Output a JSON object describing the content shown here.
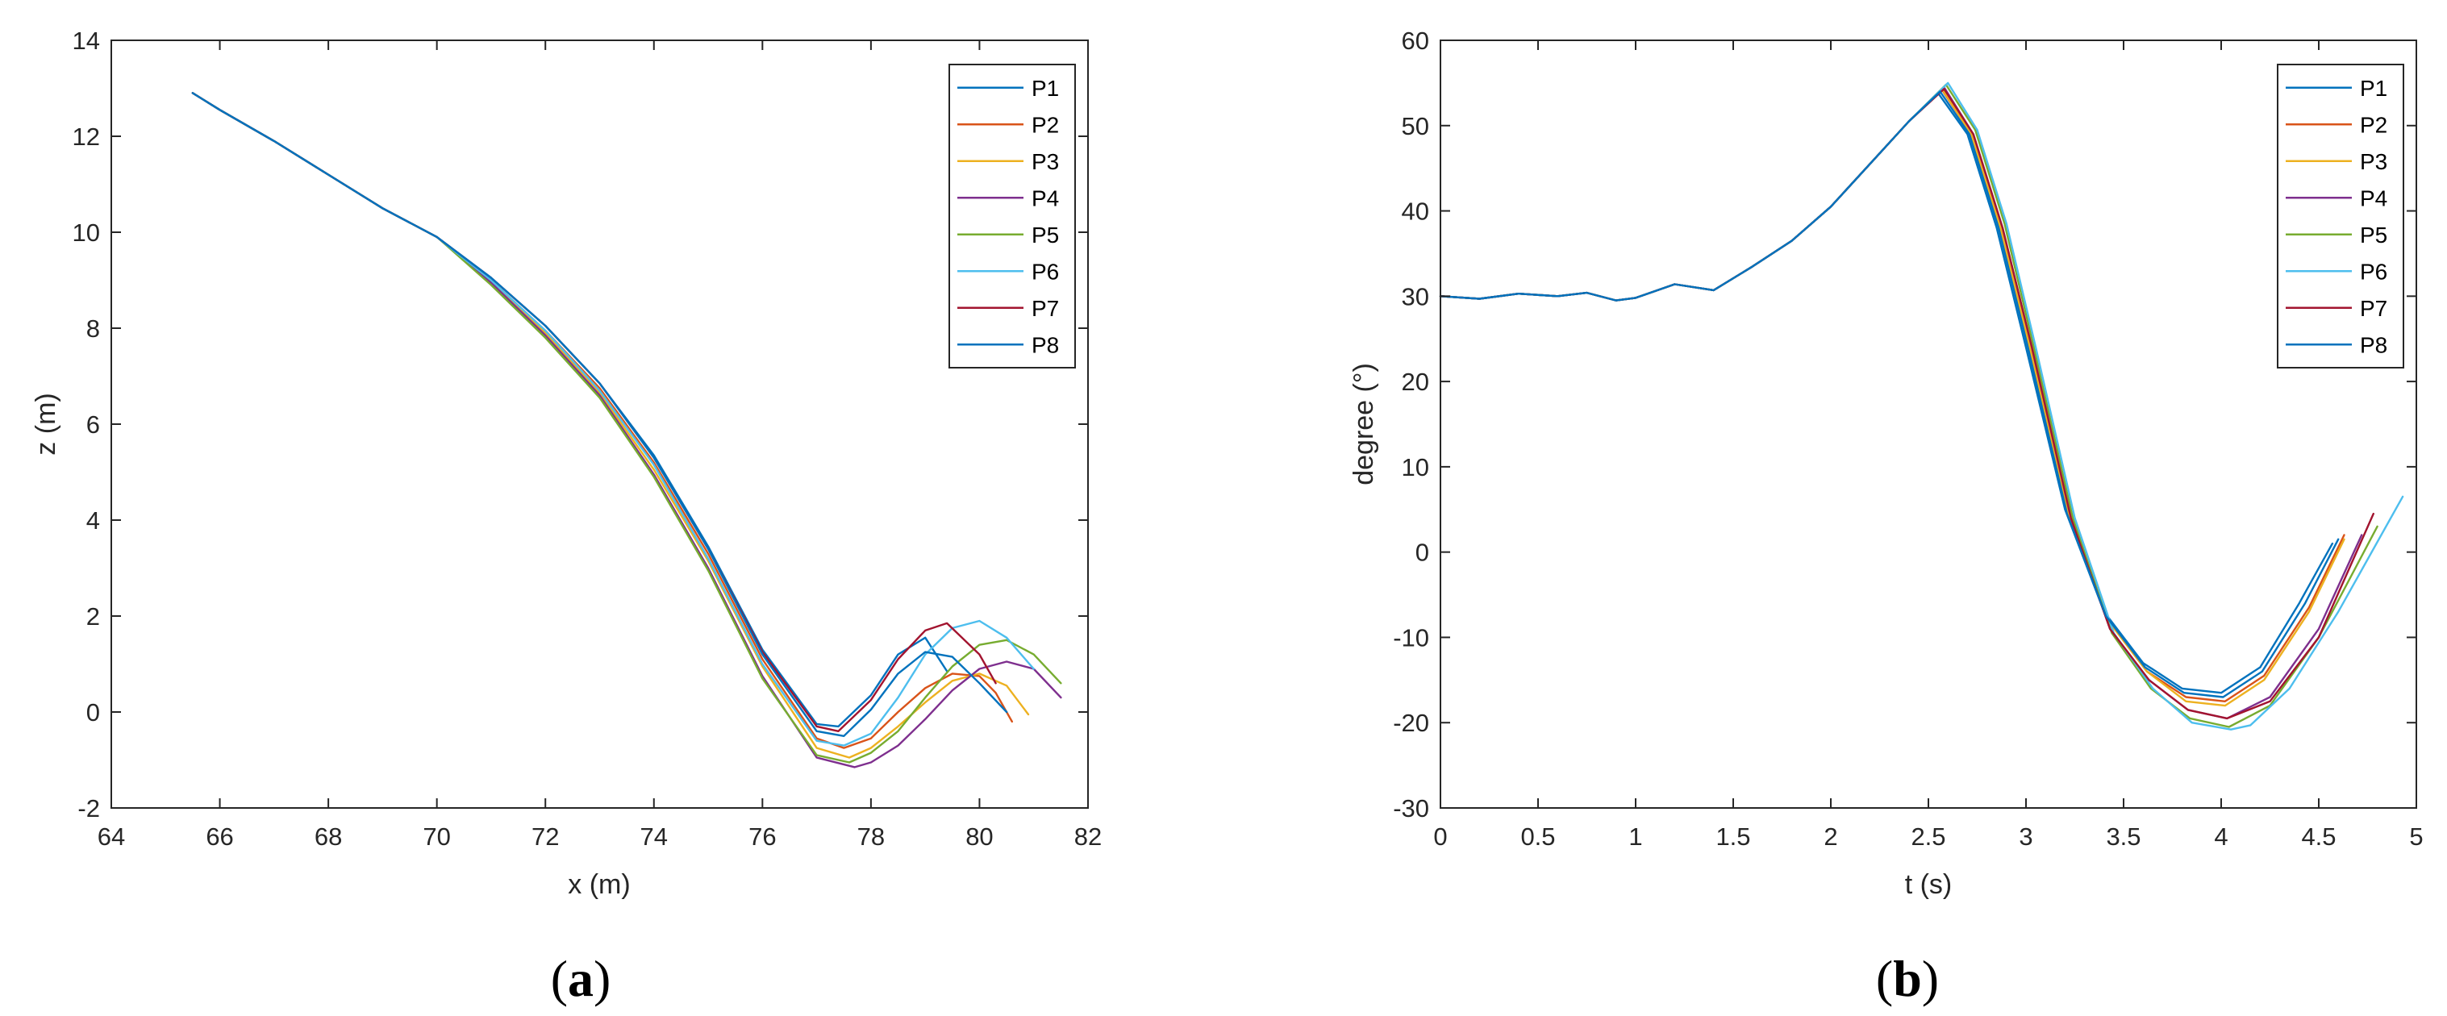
{
  "series_colors": {
    "P1": "#0072BD",
    "P2": "#D95319",
    "P3": "#EDB120",
    "P4": "#7E2F8E",
    "P5": "#77AC30",
    "P6": "#4DBEEE",
    "P7": "#A2142F",
    "P8": "#0072BD"
  },
  "panels": {
    "a": {
      "open": "(",
      "letter": "a",
      "close": ")"
    },
    "b": {
      "open": "(",
      "letter": "b",
      "close": ")"
    }
  },
  "chart_data": [
    {
      "type": "line",
      "xlabel": "x (m)",
      "ylabel": "z (m)",
      "xlim": [
        64,
        82
      ],
      "ylim": [
        -2,
        14
      ],
      "xticks": [
        "64",
        "66",
        "68",
        "70",
        "72",
        "74",
        "76",
        "78",
        "80",
        "82"
      ],
      "yticks": [
        "-2",
        "0",
        "2",
        "4",
        "6",
        "8",
        "10",
        "12",
        "14"
      ],
      "grid": false,
      "legend_position": "top-right",
      "series": [
        {
          "name": "P1",
          "x": [
            65.5,
            66,
            67,
            68,
            69,
            70,
            71,
            72,
            73,
            74,
            75,
            76,
            77,
            77.4,
            78,
            78.5,
            79,
            79.4
          ],
          "y": [
            12.9,
            12.55,
            11.9,
            11.2,
            10.5,
            9.9,
            9.05,
            8.05,
            6.85,
            5.35,
            3.45,
            1.3,
            -0.25,
            -0.3,
            0.35,
            1.2,
            1.55,
            0.85
          ]
        },
        {
          "name": "P2",
          "x": [
            65.5,
            66,
            67,
            68,
            69,
            70,
            71,
            72,
            73,
            74,
            75,
            76,
            77,
            77.5,
            78,
            78.5,
            79,
            79.5,
            80,
            80.3,
            80.6
          ],
          "y": [
            12.9,
            12.55,
            11.9,
            11.2,
            10.5,
            9.9,
            9.0,
            7.95,
            6.75,
            5.2,
            3.3,
            1.1,
            -0.55,
            -0.75,
            -0.55,
            0.0,
            0.5,
            0.8,
            0.75,
            0.4,
            -0.2
          ]
        },
        {
          "name": "P3",
          "x": [
            65.5,
            66,
            67,
            68,
            69,
            70,
            71,
            72,
            73,
            74,
            75,
            76,
            77,
            77.6,
            78,
            78.5,
            79,
            79.5,
            80,
            80.5,
            80.9
          ],
          "y": [
            12.9,
            12.55,
            11.9,
            11.2,
            10.5,
            9.9,
            8.95,
            7.9,
            6.65,
            5.05,
            3.15,
            0.95,
            -0.75,
            -0.95,
            -0.75,
            -0.3,
            0.2,
            0.65,
            0.8,
            0.55,
            -0.05
          ]
        },
        {
          "name": "P4",
          "x": [
            65.5,
            66,
            67,
            68,
            69,
            70,
            71,
            72,
            73,
            74,
            75,
            76,
            77,
            77.7,
            78,
            78.5,
            79,
            79.5,
            80,
            80.5,
            81,
            81.5
          ],
          "y": [
            12.9,
            12.55,
            11.9,
            11.2,
            10.5,
            9.9,
            8.95,
            7.85,
            6.6,
            4.95,
            3.0,
            0.75,
            -0.95,
            -1.15,
            -1.05,
            -0.7,
            -0.15,
            0.45,
            0.9,
            1.05,
            0.9,
            0.3
          ]
        },
        {
          "name": "P5",
          "x": [
            65.5,
            66,
            67,
            68,
            69,
            70,
            71,
            72,
            73,
            74,
            75,
            76,
            77,
            77.6,
            78,
            78.5,
            79,
            79.5,
            80,
            80.5,
            81,
            81.5
          ],
          "y": [
            12.9,
            12.55,
            11.9,
            11.2,
            10.5,
            9.9,
            8.9,
            7.8,
            6.55,
            4.9,
            2.95,
            0.7,
            -0.9,
            -1.05,
            -0.85,
            -0.4,
            0.3,
            0.95,
            1.4,
            1.5,
            1.2,
            0.6
          ]
        },
        {
          "name": "P6",
          "x": [
            65.5,
            66,
            67,
            68,
            69,
            70,
            71,
            72,
            73,
            74,
            75,
            76,
            77,
            77.5,
            78,
            78.5,
            79,
            79.5,
            80,
            80.5,
            81
          ],
          "y": [
            12.9,
            12.55,
            11.9,
            11.2,
            10.5,
            9.9,
            9.0,
            7.95,
            6.7,
            5.15,
            3.2,
            1.0,
            -0.6,
            -0.7,
            -0.45,
            0.3,
            1.2,
            1.75,
            1.9,
            1.55,
            0.9
          ]
        },
        {
          "name": "P7",
          "x": [
            65.5,
            66,
            67,
            68,
            69,
            70,
            71,
            72,
            73,
            74,
            75,
            76,
            77,
            77.4,
            78,
            78.5,
            79,
            79.4,
            80,
            80.3
          ],
          "y": [
            12.9,
            12.55,
            11.9,
            11.2,
            10.5,
            9.9,
            9.05,
            8.05,
            6.85,
            5.3,
            3.4,
            1.25,
            -0.3,
            -0.4,
            0.25,
            1.1,
            1.7,
            1.85,
            1.2,
            0.6
          ]
        },
        {
          "name": "P8",
          "x": [
            65.5,
            66,
            67,
            68,
            69,
            70,
            71,
            72,
            73,
            74,
            75,
            76,
            77,
            77.5,
            78,
            78.5,
            79,
            79.5,
            80,
            80.5
          ],
          "y": [
            12.9,
            12.55,
            11.9,
            11.2,
            10.5,
            9.9,
            9.05,
            8.05,
            6.85,
            5.3,
            3.4,
            1.2,
            -0.4,
            -0.5,
            0.05,
            0.8,
            1.25,
            1.15,
            0.6,
            0.0
          ]
        }
      ]
    },
    {
      "type": "line",
      "xlabel": "t (s)",
      "ylabel": "degree (°)",
      "xlim": [
        0,
        5
      ],
      "ylim": [
        -30,
        60
      ],
      "xticks": [
        "0",
        "0.5",
        "1",
        "1.5",
        "2",
        "2.5",
        "3",
        "3.5",
        "4",
        "4.5",
        "5"
      ],
      "yticks": [
        "-30",
        "-20",
        "-10",
        "0",
        "10",
        "20",
        "30",
        "40",
        "50",
        "60"
      ],
      "grid": false,
      "legend_position": "top-right",
      "series": [
        {
          "name": "P1",
          "x": [
            0,
            0.2,
            0.4,
            0.6,
            0.75,
            0.9,
            1.0,
            1.2,
            1.4,
            1.6,
            1.8,
            2.0,
            2.2,
            2.4,
            2.55,
            2.7,
            2.85,
            3.0,
            3.2,
            3.4,
            3.6,
            3.8,
            4.0,
            4.2,
            4.4,
            4.57
          ],
          "y": [
            30,
            29.7,
            30.3,
            30.0,
            30.4,
            29.5,
            29.8,
            31.4,
            30.7,
            33.5,
            36.5,
            40.5,
            45.5,
            50.5,
            53.8,
            49,
            38,
            24,
            5,
            -7,
            -13,
            -16,
            -16.5,
            -13.5,
            -6,
            1
          ]
        },
        {
          "name": "P2",
          "x": [
            0,
            0.2,
            0.4,
            0.6,
            0.75,
            0.9,
            1.0,
            1.2,
            1.4,
            1.6,
            1.8,
            2.0,
            2.2,
            2.4,
            2.57,
            2.72,
            2.87,
            3.02,
            3.22,
            3.42,
            3.62,
            3.82,
            4.02,
            4.22,
            4.45,
            4.63
          ],
          "y": [
            30,
            29.7,
            30.3,
            30.0,
            30.4,
            29.5,
            29.8,
            31.4,
            30.7,
            33.5,
            36.5,
            40.5,
            45.5,
            50.5,
            54.2,
            49,
            38,
            24,
            4,
            -8,
            -14,
            -17,
            -17.5,
            -14.5,
            -6.5,
            2
          ]
        },
        {
          "name": "P3",
          "x": [
            0,
            0.2,
            0.4,
            0.6,
            0.75,
            0.9,
            1.0,
            1.2,
            1.4,
            1.6,
            1.8,
            2.0,
            2.2,
            2.4,
            2.57,
            2.72,
            2.87,
            3.02,
            3.22,
            3.42,
            3.62,
            3.82,
            4.02,
            4.22,
            4.45,
            4.63
          ],
          "y": [
            30,
            29.7,
            30.3,
            30.0,
            30.4,
            29.5,
            29.8,
            31.4,
            30.7,
            33.5,
            36.5,
            40.5,
            45.5,
            50.5,
            54.3,
            49,
            38,
            24,
            4,
            -8,
            -14,
            -17.5,
            -18,
            -15,
            -7,
            1.5
          ]
        },
        {
          "name": "P4",
          "x": [
            0,
            0.2,
            0.4,
            0.6,
            0.75,
            0.9,
            1.0,
            1.2,
            1.4,
            1.6,
            1.8,
            2.0,
            2.2,
            2.4,
            2.58,
            2.73,
            2.88,
            3.03,
            3.23,
            3.43,
            3.63,
            3.83,
            4.03,
            4.25,
            4.5,
            4.72
          ],
          "y": [
            30,
            29.7,
            30.3,
            30.0,
            30.4,
            29.5,
            29.8,
            31.4,
            30.7,
            33.5,
            36.5,
            40.5,
            45.5,
            50.5,
            54.5,
            49,
            38,
            24,
            4,
            -9,
            -15,
            -18.5,
            -19.5,
            -17,
            -9,
            2
          ]
        },
        {
          "name": "P5",
          "x": [
            0,
            0.2,
            0.4,
            0.6,
            0.75,
            0.9,
            1.0,
            1.2,
            1.4,
            1.6,
            1.8,
            2.0,
            2.2,
            2.4,
            2.59,
            2.74,
            2.89,
            3.04,
            3.24,
            3.44,
            3.64,
            3.84,
            4.04,
            4.25,
            4.5,
            4.8
          ],
          "y": [
            30,
            29.7,
            30.3,
            30.0,
            30.4,
            29.5,
            29.8,
            31.4,
            30.7,
            33.5,
            36.5,
            40.5,
            45.5,
            50.5,
            54.8,
            49.5,
            38.5,
            24,
            4,
            -9.5,
            -16,
            -19.5,
            -20.5,
            -18,
            -10,
            3
          ]
        },
        {
          "name": "P6",
          "x": [
            0,
            0.2,
            0.4,
            0.6,
            0.75,
            0.9,
            1.0,
            1.2,
            1.4,
            1.6,
            1.8,
            2.0,
            2.2,
            2.4,
            2.6,
            2.75,
            2.9,
            3.05,
            3.25,
            3.45,
            3.65,
            3.85,
            4.05,
            4.15,
            4.35,
            4.6,
            4.93
          ],
          "y": [
            30,
            29.7,
            30.3,
            30.0,
            30.4,
            29.5,
            29.8,
            31.4,
            30.7,
            33.5,
            36.5,
            40.5,
            45.5,
            50.5,
            55,
            49.5,
            38.5,
            24,
            4,
            -9.5,
            -16,
            -20,
            -20.8,
            -20.3,
            -16,
            -7,
            6.5
          ]
        },
        {
          "name": "P7",
          "x": [
            0,
            0.2,
            0.4,
            0.6,
            0.75,
            0.9,
            1.0,
            1.2,
            1.4,
            1.6,
            1.8,
            2.0,
            2.2,
            2.4,
            2.58,
            2.73,
            2.88,
            3.03,
            3.23,
            3.43,
            3.63,
            3.83,
            4.03,
            4.25,
            4.5,
            4.78
          ],
          "y": [
            30,
            29.7,
            30.3,
            30.0,
            30.4,
            29.5,
            29.8,
            31.4,
            30.7,
            33.5,
            36.5,
            40.5,
            45.5,
            50.5,
            54.3,
            49,
            38,
            24,
            4,
            -9,
            -15,
            -18.5,
            -19.5,
            -17.5,
            -10,
            4.5
          ]
        },
        {
          "name": "P8",
          "x": [
            0,
            0.2,
            0.4,
            0.6,
            0.75,
            0.9,
            1.0,
            1.2,
            1.4,
            1.6,
            1.8,
            2.0,
            2.2,
            2.4,
            2.56,
            2.71,
            2.86,
            3.01,
            3.21,
            3.41,
            3.61,
            3.81,
            4.01,
            4.21,
            4.43,
            4.6
          ],
          "y": [
            30,
            29.7,
            30.3,
            30.0,
            30.4,
            29.5,
            29.8,
            31.4,
            30.7,
            33.5,
            36.5,
            40.5,
            45.5,
            50.5,
            54,
            49,
            38,
            24,
            4.5,
            -7.5,
            -13.5,
            -16.5,
            -17,
            -14,
            -6,
            1.5
          ]
        }
      ]
    }
  ]
}
